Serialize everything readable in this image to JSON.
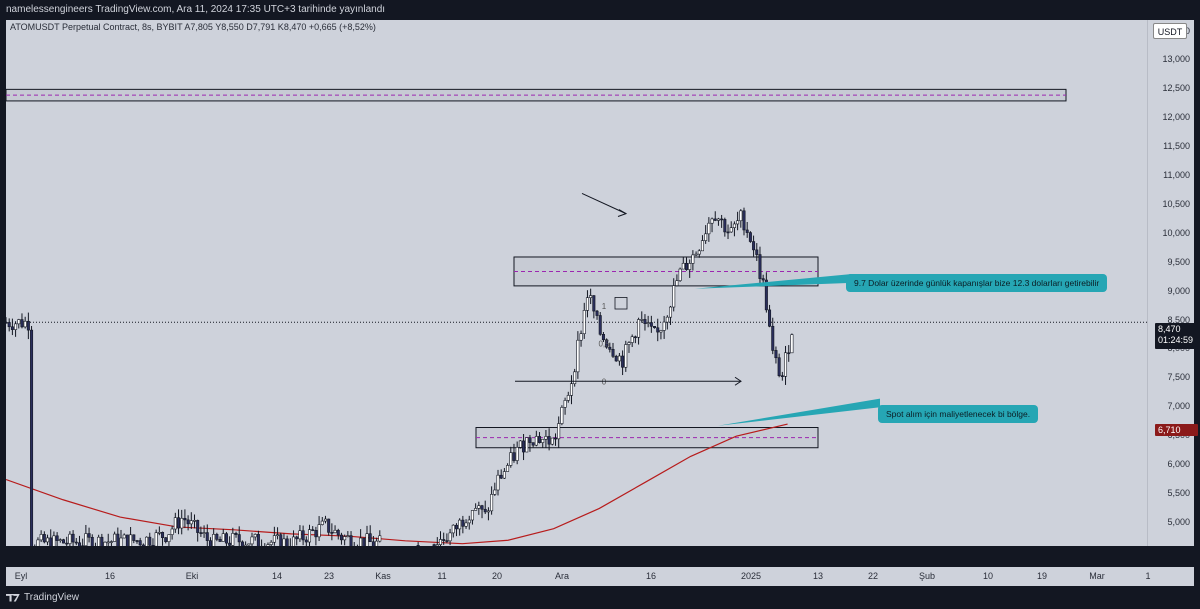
{
  "header": {
    "publisher_text": "namelessengineers TradingView.com, Ara 11, 2024 17:35 UTC+3 tarihinde yayınlandı"
  },
  "symbol_line": "ATOMUSDT Perpetual Contract, 8s, BYBIT  A7,805  Y8,550  D7,791  K8,470  +0,665 (+8,52%)",
  "currency_button": "USDT",
  "footer": {
    "brand": "TradingView"
  },
  "colors": {
    "background": "#ced2db",
    "candle_up": "#ffffff",
    "candle_down": "#2a2e5c",
    "ma_line": "#b71c1c",
    "callout": "#26a6b4",
    "dashed": "#9c27b0"
  },
  "chart_data": {
    "type": "candlestick",
    "title": "",
    "ylim": [
      4600,
      13700
    ],
    "y_ticks": [
      "13,500",
      "13,000",
      "12,500",
      "12,000",
      "11,500",
      "11,000",
      "10,500",
      "10,000",
      "9,500",
      "9,000",
      "8,500",
      "8,000",
      "7,500",
      "7,000",
      "6,500",
      "6,000",
      "5,500",
      "5,000"
    ],
    "y_tick_values": [
      13500,
      13000,
      12500,
      12000,
      11500,
      11000,
      10500,
      10000,
      9500,
      9000,
      8500,
      8000,
      7500,
      7000,
      6500,
      6000,
      5500,
      5000
    ],
    "x_ticks": [
      "Eyl",
      "16",
      "Eki",
      "14",
      "23",
      "Kas",
      "11",
      "20",
      "Ara",
      "16",
      "2025",
      "13",
      "22",
      "Şub",
      "10",
      "19",
      "Mar",
      "1"
    ],
    "current_price": {
      "value": "8,470",
      "countdown": "01:24:59",
      "level": 8470
    },
    "ma_price": {
      "value": "6,710",
      "level": 6710
    },
    "price_path": [
      {
        "t": 0.02,
        "v": 4650
      },
      {
        "t": 0.12,
        "v": 4700
      },
      {
        "t": 0.14,
        "v": 4800
      },
      {
        "t": 0.155,
        "v": 5100
      },
      {
        "t": 0.165,
        "v": 4900
      },
      {
        "t": 0.18,
        "v": 4650
      },
      {
        "t": 0.2,
        "v": 4700
      },
      {
        "t": 0.25,
        "v": 4650
      },
      {
        "t": 0.28,
        "v": 4950
      },
      {
        "t": 0.295,
        "v": 4750
      },
      {
        "t": 0.32,
        "v": 4650
      },
      {
        "t": 0.37,
        "v": 4600
      },
      {
        "t": 0.39,
        "v": 4800
      },
      {
        "t": 0.41,
        "v": 5300
      },
      {
        "t": 0.42,
        "v": 5100
      },
      {
        "t": 0.43,
        "v": 5700
      },
      {
        "t": 0.45,
        "v": 6300
      },
      {
        "t": 0.46,
        "v": 6500
      },
      {
        "t": 0.48,
        "v": 6400
      },
      {
        "t": 0.495,
        "v": 7400
      },
      {
        "t": 0.51,
        "v": 9000
      },
      {
        "t": 0.52,
        "v": 8300
      },
      {
        "t": 0.54,
        "v": 7800
      },
      {
        "t": 0.555,
        "v": 8500
      },
      {
        "t": 0.57,
        "v": 8200
      },
      {
        "t": 0.58,
        "v": 8700
      },
      {
        "t": 0.59,
        "v": 9300
      },
      {
        "t": 0.605,
        "v": 9700
      },
      {
        "t": 0.62,
        "v": 10400
      },
      {
        "t": 0.635,
        "v": 10000
      },
      {
        "t": 0.645,
        "v": 10300
      },
      {
        "t": 0.655,
        "v": 9800
      },
      {
        "t": 0.665,
        "v": 9000
      },
      {
        "t": 0.672,
        "v": 7900
      },
      {
        "t": 0.68,
        "v": 7500
      },
      {
        "t": 0.69,
        "v": 8470
      }
    ],
    "ma_path": [
      {
        "t": 0.0,
        "v": 5750
      },
      {
        "t": 0.05,
        "v": 5400
      },
      {
        "t": 0.1,
        "v": 5100
      },
      {
        "t": 0.15,
        "v": 4930
      },
      {
        "t": 0.2,
        "v": 4880
      },
      {
        "t": 0.25,
        "v": 4810
      },
      {
        "t": 0.3,
        "v": 4770
      },
      {
        "t": 0.35,
        "v": 4690
      },
      {
        "t": 0.4,
        "v": 4640
      },
      {
        "t": 0.44,
        "v": 4700
      },
      {
        "t": 0.48,
        "v": 4900
      },
      {
        "t": 0.52,
        "v": 5250
      },
      {
        "t": 0.56,
        "v": 5700
      },
      {
        "t": 0.6,
        "v": 6150
      },
      {
        "t": 0.64,
        "v": 6500
      },
      {
        "t": 0.685,
        "v": 6710
      }
    ],
    "zones": [
      {
        "name": "upper-resistance-zone",
        "from": 12300,
        "to": 12500
      },
      {
        "name": "resistance-zone",
        "from": 9100,
        "to": 9600
      },
      {
        "name": "support-zone",
        "from": 6300,
        "to": 6650
      }
    ],
    "fib_labels": [
      {
        "label": "1",
        "level": 8750
      },
      {
        "label": "0,5",
        "level": 8100
      },
      {
        "label": "0",
        "level": 7450
      }
    ],
    "annotations": [
      {
        "text": "9.7 Dolar üzerinde günlük kapanışlar bize 12.3 dolarları getirebilir"
      },
      {
        "text": "Spot alım için maliyetlenecek bi bölge."
      }
    ]
  }
}
